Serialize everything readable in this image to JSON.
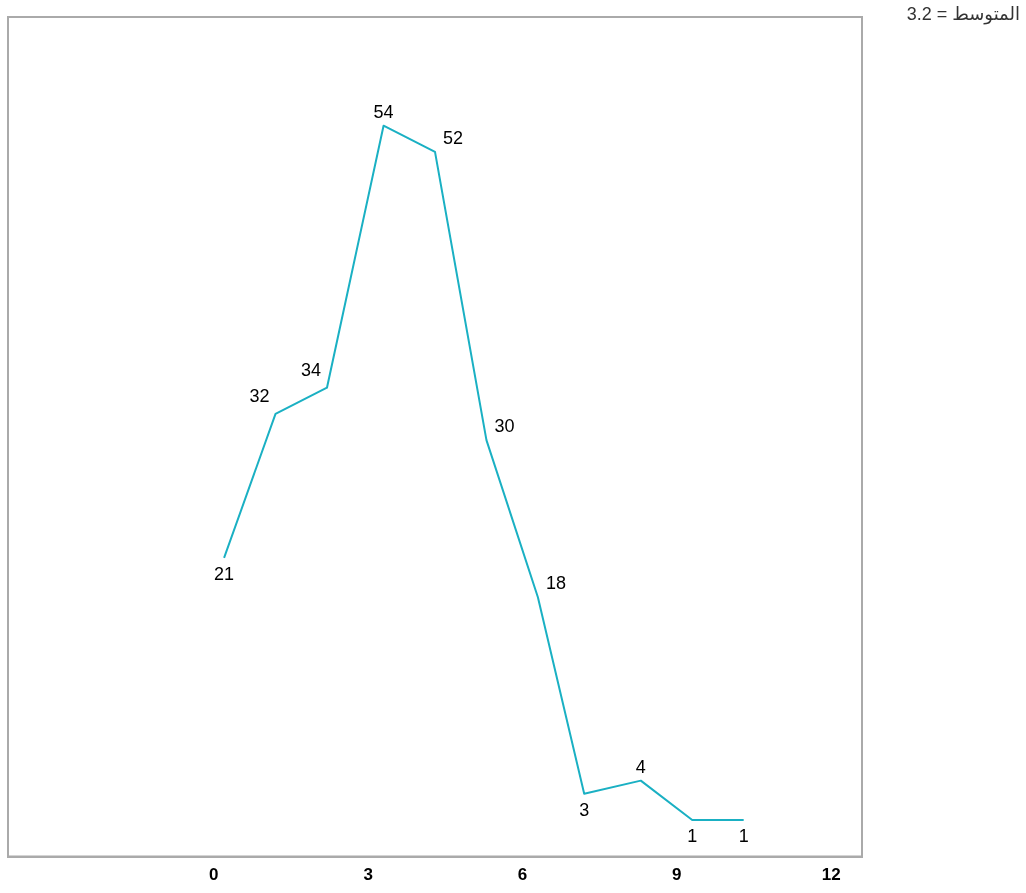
{
  "chart_data": {
    "type": "line",
    "x": [
      0.2,
      1.2,
      2.2,
      3.3,
      4.3,
      5.3,
      6.3,
      7.2,
      8.3,
      9.3,
      10.3
    ],
    "series": [
      {
        "color": "#1ab0c3",
        "values": [
          21,
          32,
          34,
          54,
          52,
          30,
          18,
          3,
          4,
          1,
          1
        ]
      }
    ],
    "xlim": [
      -4,
      12.6
    ],
    "xticks": [
      0,
      3,
      6,
      9,
      12
    ],
    "ylim": [
      -1.8,
      62.3
    ],
    "tick_labels": "x",
    "data_labels": true,
    "grid": false,
    "legend": false,
    "marker": "none",
    "line_style": "solid",
    "annotations": [
      "المتوسط = 3.2"
    ]
  }
}
